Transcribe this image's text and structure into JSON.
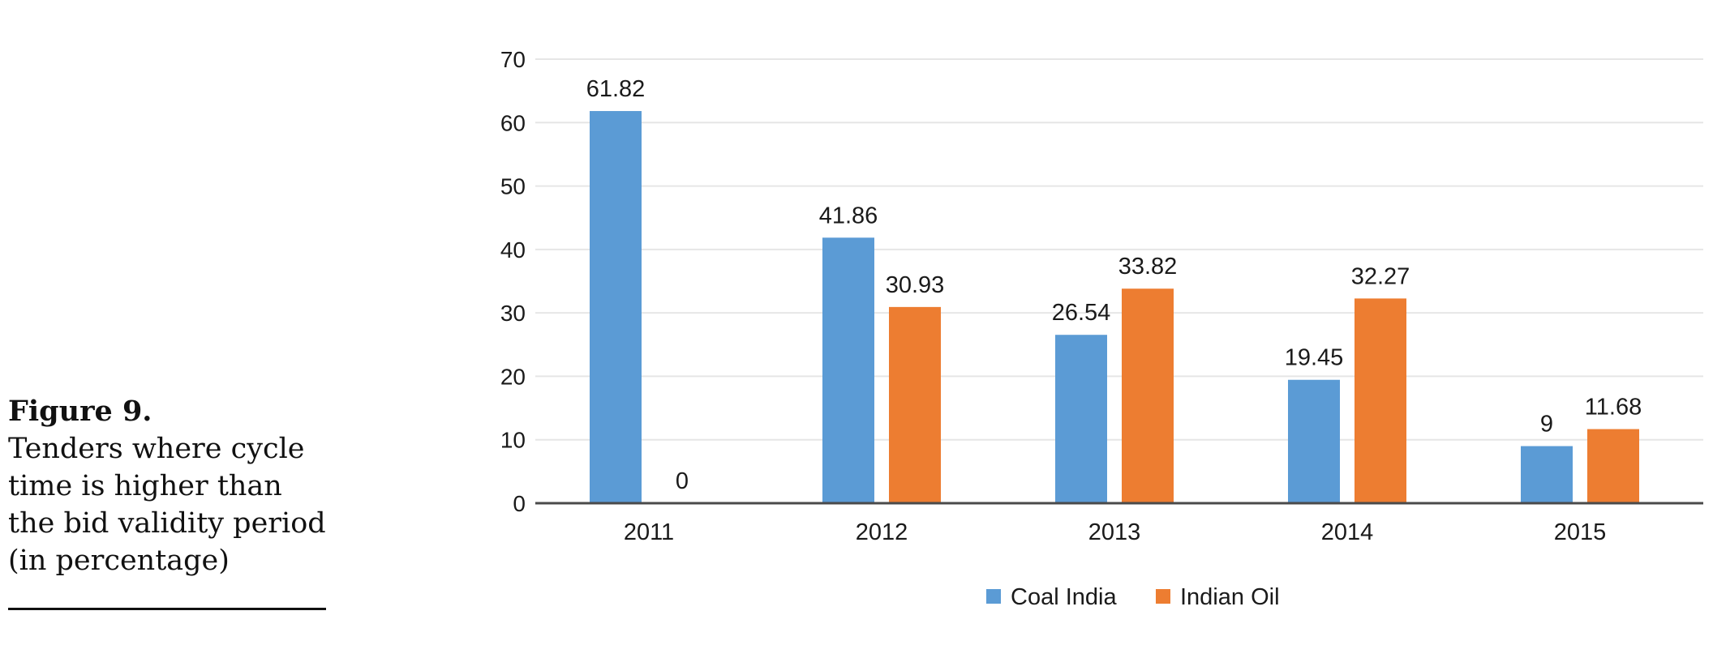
{
  "caption": {
    "label": "Figure 9.",
    "text": "Tenders where cycle time is higher than the bid validity period (in percentage)"
  },
  "chart_data": {
    "type": "bar",
    "categories": [
      "2011",
      "2012",
      "2013",
      "2014",
      "2015"
    ],
    "series": [
      {
        "name": "Coal India",
        "values": [
          61.82,
          41.86,
          26.54,
          19.45,
          9
        ],
        "labels": [
          "61.82",
          "41.86",
          "26.54",
          "19.45",
          "9"
        ],
        "color": "#5b9bd5"
      },
      {
        "name": "Indian Oil",
        "values": [
          0,
          30.93,
          33.82,
          32.27,
          11.68
        ],
        "labels": [
          "0",
          "30.93",
          "33.82",
          "32.27",
          "11.68"
        ],
        "color": "#ed7d31"
      }
    ],
    "title": "",
    "xlabel": "",
    "ylabel": "",
    "ylim": [
      0,
      70
    ],
    "yticks": [
      "0",
      "10",
      "20",
      "30",
      "40",
      "50",
      "60",
      "70"
    ],
    "grid": true,
    "legend_position": "bottom-center"
  }
}
